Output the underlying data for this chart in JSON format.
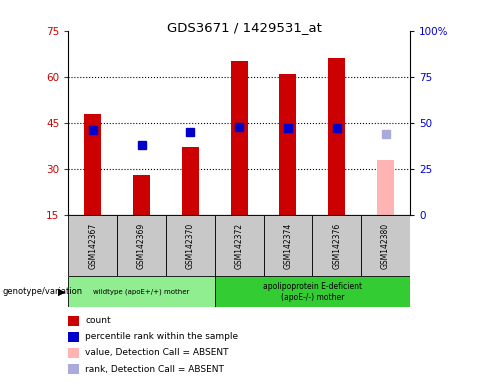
{
  "title": "GDS3671 / 1429531_at",
  "samples": [
    "GSM142367",
    "GSM142369",
    "GSM142370",
    "GSM142372",
    "GSM142374",
    "GSM142376",
    "GSM142380"
  ],
  "bar_values": [
    48,
    28,
    37,
    65,
    61,
    66,
    33
  ],
  "bar_colors": [
    "#cc0000",
    "#cc0000",
    "#cc0000",
    "#cc0000",
    "#cc0000",
    "#cc0000",
    "#ffb3b3"
  ],
  "percentile_values": [
    46,
    38,
    45,
    48,
    47,
    47,
    44
  ],
  "percentile_colors": [
    "#0000cc",
    "#0000cc",
    "#0000cc",
    "#0000cc",
    "#0000cc",
    "#0000cc",
    "#aaaadd"
  ],
  "bar_bottom": 15,
  "ylim_left": [
    15,
    75
  ],
  "ylim_right": [
    0,
    100
  ],
  "yticks_left": [
    15,
    30,
    45,
    60,
    75
  ],
  "yticks_right": [
    0,
    25,
    50,
    75,
    100
  ],
  "ytick_labels_right": [
    "0",
    "25",
    "50",
    "75",
    "100%"
  ],
  "group1_label": "wildtype (apoE+/+) mother",
  "group2_label": "apolipoprotein E-deficient\n(apoE-/-) mother",
  "group1_indices": [
    0,
    1,
    2
  ],
  "group2_indices": [
    3,
    4,
    5,
    6
  ],
  "genotype_label": "genotype/variation",
  "legend_items": [
    {
      "label": "count",
      "color": "#cc0000"
    },
    {
      "label": "percentile rank within the sample",
      "color": "#0000cc"
    },
    {
      "label": "value, Detection Call = ABSENT",
      "color": "#ffb3b3"
    },
    {
      "label": "rank, Detection Call = ABSENT",
      "color": "#aaaadd"
    }
  ],
  "bg_color": "#ffffff",
  "tick_label_bg": "#c8c8c8",
  "group1_bg": "#90ee90",
  "group2_bg": "#33cc33",
  "bar_width": 0.35,
  "marker_size": 6
}
